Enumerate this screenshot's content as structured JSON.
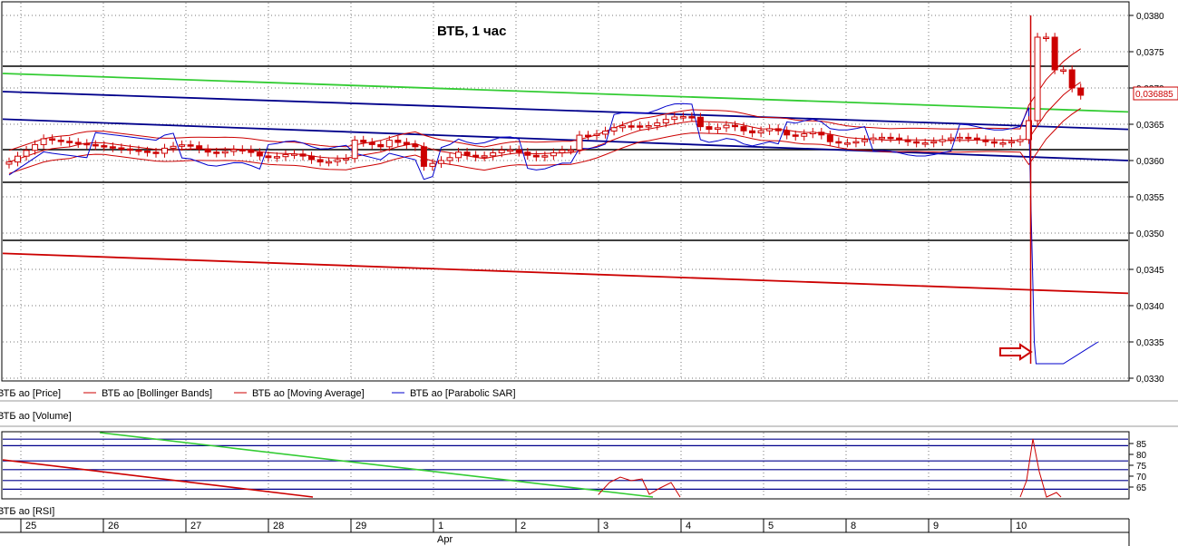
{
  "chart_data": [
    {
      "type": "candlestick",
      "title": "ВТБ, 1 час",
      "y_axis": {
        "ylim": [
          0.033,
          0.038
        ],
        "ticks": [
          "0,0380",
          "0,0375",
          "0,0370",
          "0,0365",
          "0,0360",
          "0,0355",
          "0,0350",
          "0,0345",
          "0,0340",
          "0,0335",
          "0,0330"
        ],
        "tick_values": [
          0.038,
          0.0375,
          0.037,
          0.0365,
          0.036,
          0.0355,
          0.035,
          0.0345,
          0.034,
          0.0335,
          0.033
        ],
        "position": "right"
      },
      "last_price_label": "0,036885",
      "last_price": 0.036885,
      "legend": [
        {
          "label": "ВТБ ао [Price]",
          "color": "#000000"
        },
        {
          "label": "ВТБ ао [Bollinger Bands]",
          "color": "#cc0000"
        },
        {
          "label": "ВТБ ао [Moving Average]",
          "color": "#cc0000"
        },
        {
          "label": "ВТБ ао [Parabolic SAR]",
          "color": "#0000cc"
        }
      ],
      "horizontal_levels": [
        0.0373,
        0.03615,
        0.0357,
        0.0349
      ],
      "trend_lines": [
        {
          "name": "green",
          "color": "#33cc33",
          "from": 0.0372,
          "to": 0.03667
        },
        {
          "name": "blue-upper",
          "color": "#00008b",
          "from": 0.03695,
          "to": 0.03643
        },
        {
          "name": "blue-lower",
          "color": "#00008b",
          "from": 0.03657,
          "to": 0.036
        },
        {
          "name": "red",
          "color": "#cc0000",
          "from": 0.03472,
          "to": 0.03417
        }
      ],
      "annotation": "arrow pointing to spike low near 0.0332",
      "spike": {
        "high": 0.038,
        "low": 0.0332
      },
      "grid": true
    },
    {
      "type": "line",
      "panel": "RSI",
      "y_axis": {
        "ticks": [
          "85",
          "80",
          "75",
          "70",
          "65"
        ],
        "tick_values": [
          85,
          80,
          75,
          70,
          65
        ]
      },
      "levels_blue": [
        87,
        84,
        77,
        73,
        68,
        64
      ],
      "grid": true
    }
  ],
  "volume_label": "ВТБ ао [Volume]",
  "rsi_label": "ВТБ ао [RSI]",
  "x_axis": {
    "days": [
      "25",
      "26",
      "27",
      "28",
      "29",
      "1",
      "2",
      "3",
      "4",
      "5",
      "8",
      "9",
      "10"
    ],
    "month": "Apr"
  }
}
